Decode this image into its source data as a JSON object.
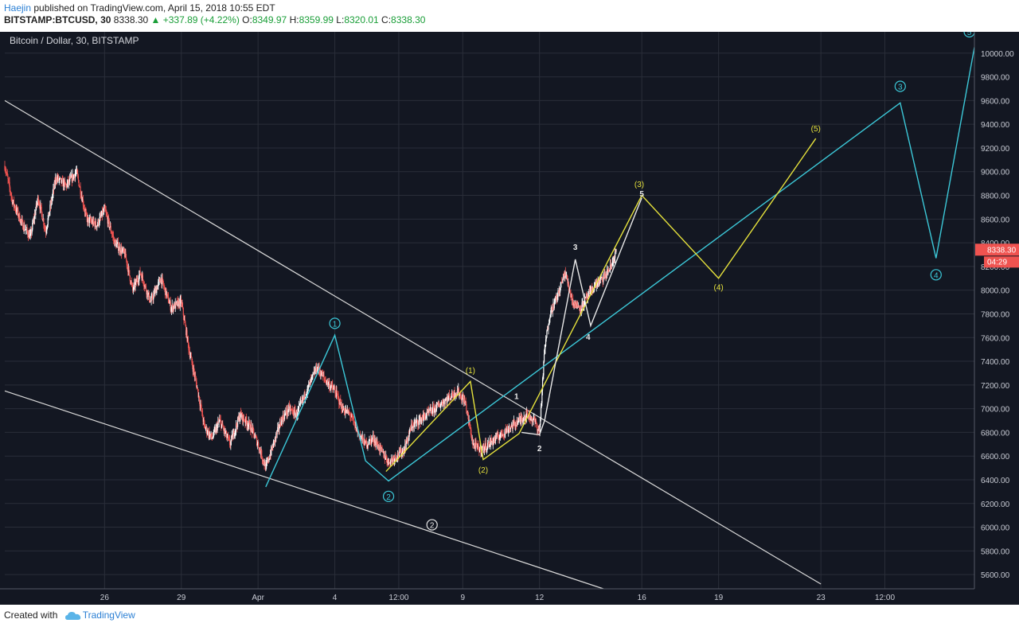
{
  "header": {
    "author": "Haejin",
    "published_text": " published on TradingView.com, April 15, 2018 10:55 EDT",
    "symbol": "BITSTAMP:BTCUSD, 30",
    "last": "8338.30",
    "change": "▲ +337.89 (+4.22%)",
    "o_label": "O:",
    "o_value": "8349.97",
    "h_label": "H:",
    "h_value": "8359.99",
    "l_label": "L:",
    "l_value": "8320.01",
    "c_label": "C:",
    "c_value": "8338.30"
  },
  "footer": {
    "created_with": "Created with",
    "brand": "TradingView"
  },
  "colors": {
    "background": "#131722",
    "grid": "#2a2e39",
    "axis_text": "#c8cbd4",
    "candle_up": "#ffffff",
    "candle_down": "#ef5350",
    "cyan_wave": "#3cc8d8",
    "yellow_wave": "#e6e23c",
    "white_wave": "#e8e8e8",
    "trendline": "#d8d8d8",
    "price_tag": "#ef5350"
  },
  "chart_data": {
    "type": "candlestick",
    "title": "Bitcoin / Dollar, 30, BITSTAMP",
    "ylim": [
      5480,
      10180
    ],
    "y_ticks": [
      "5600.00",
      "5800.00",
      "6000.00",
      "6200.00",
      "6400.00",
      "6600.00",
      "6800.00",
      "7000.00",
      "7200.00",
      "7400.00",
      "7600.00",
      "7800.00",
      "8000.00",
      "8200.00",
      "8400.00",
      "8600.00",
      "8800.00",
      "9000.00",
      "9200.00",
      "9400.00",
      "9600.00",
      "9800.00",
      "10000.00"
    ],
    "x_ticks": [
      {
        "label": "26",
        "day": 25.0
      },
      {
        "label": "29",
        "day": 28.0
      },
      {
        "label": "Apr",
        "day": 31.0
      },
      {
        "label": "4",
        "day": 34.0
      },
      {
        "label": "12:00",
        "day": 36.5
      },
      {
        "label": "9",
        "day": 39.0
      },
      {
        "label": "12",
        "day": 42.0
      },
      {
        "label": "16",
        "day": 46.0
      },
      {
        "label": "19",
        "day": 49.0
      },
      {
        "label": "23",
        "day": 53.0
      },
      {
        "label": "12:00",
        "day": 55.5
      }
    ],
    "x_range_days": [
      21.1,
      59.0
    ],
    "price_path": [
      [
        21.1,
        9050
      ],
      [
        21.4,
        8750
      ],
      [
        21.8,
        8550
      ],
      [
        22.1,
        8450
      ],
      [
        22.4,
        8780
      ],
      [
        22.7,
        8500
      ],
      [
        23.1,
        8950
      ],
      [
        23.5,
        8880
      ],
      [
        23.9,
        9000
      ],
      [
        24.3,
        8600
      ],
      [
        24.7,
        8550
      ],
      [
        25.0,
        8680
      ],
      [
        25.4,
        8400
      ],
      [
        25.8,
        8300
      ],
      [
        26.1,
        8000
      ],
      [
        26.4,
        8150
      ],
      [
        26.8,
        7900
      ],
      [
        27.2,
        8100
      ],
      [
        27.6,
        7850
      ],
      [
        28.0,
        7900
      ],
      [
        28.3,
        7500
      ],
      [
        28.6,
        7200
      ],
      [
        28.9,
        6850
      ],
      [
        29.2,
        6750
      ],
      [
        29.5,
        6900
      ],
      [
        29.9,
        6700
      ],
      [
        30.3,
        6950
      ],
      [
        30.7,
        6850
      ],
      [
        31.0,
        6700
      ],
      [
        31.3,
        6500
      ],
      [
        31.6,
        6700
      ],
      [
        31.9,
        6900
      ],
      [
        32.2,
        7000
      ],
      [
        32.5,
        6950
      ],
      [
        32.8,
        7100
      ],
      [
        33.0,
        7200
      ],
      [
        33.3,
        7350
      ],
      [
        33.6,
        7250
      ],
      [
        34.0,
        7150
      ],
      [
        34.3,
        7000
      ],
      [
        34.6,
        6950
      ],
      [
        34.9,
        6800
      ],
      [
        35.2,
        6700
      ],
      [
        35.5,
        6750
      ],
      [
        35.8,
        6650
      ],
      [
        36.1,
        6550
      ],
      [
        36.4,
        6600
      ],
      [
        36.7,
        6650
      ],
      [
        37.0,
        6850
      ],
      [
        37.3,
        6900
      ],
      [
        37.6,
        6950
      ],
      [
        37.9,
        7000
      ],
      [
        38.2,
        7050
      ],
      [
        38.5,
        7100
      ],
      [
        38.8,
        7150
      ],
      [
        39.1,
        7050
      ],
      [
        39.4,
        6700
      ],
      [
        39.7,
        6650
      ],
      [
        40.0,
        6700
      ],
      [
        40.3,
        6750
      ],
      [
        40.6,
        6800
      ],
      [
        40.9,
        6850
      ],
      [
        41.2,
        6900
      ],
      [
        41.5,
        6950
      ],
      [
        41.8,
        6900
      ],
      [
        42.0,
        6800
      ],
      [
        42.2,
        7500
      ],
      [
        42.4,
        7800
      ],
      [
        42.7,
        7950
      ],
      [
        43.0,
        8150
      ],
      [
        43.3,
        7900
      ],
      [
        43.6,
        7850
      ],
      [
        43.9,
        7950
      ],
      [
        44.2,
        8050
      ],
      [
        44.5,
        8100
      ],
      [
        44.8,
        8200
      ],
      [
        45.0,
        8338
      ]
    ],
    "labels": {
      "w1": "1",
      "w2": "2",
      "w3": "3",
      "w4": "4",
      "w5": "5",
      "y1": "(1)",
      "y2": "(2)",
      "y3": "(3)",
      "y4": "(4)",
      "y5": "(5)",
      "s1": "1",
      "s2": "2",
      "s3": "3",
      "s4": "4",
      "s5": "5",
      "big2": "2"
    },
    "cyan_path": [
      [
        31.3,
        6340
      ],
      [
        34.0,
        7620
      ],
      [
        35.2,
        6560
      ],
      [
        36.1,
        6390
      ],
      [
        56.1,
        9580
      ],
      [
        57.5,
        8270
      ],
      [
        59.0,
        10050
      ]
    ],
    "yellow_path": [
      [
        36.0,
        6470
      ],
      [
        39.3,
        7230
      ],
      [
        39.8,
        6570
      ],
      [
        41.2,
        6790
      ],
      [
        46.0,
        8800
      ],
      [
        49.0,
        8100
      ],
      [
        52.8,
        9280
      ]
    ],
    "white_path": [
      [
        41.3,
        6800
      ],
      [
        42.0,
        6780
      ],
      [
        42.2,
        6900
      ],
      [
        43.4,
        8260
      ],
      [
        44.0,
        7700
      ],
      [
        46.0,
        8780
      ]
    ],
    "trendlines": [
      {
        "from": [
          21.1,
          9600
        ],
        "to": [
          53.0,
          5520
        ]
      },
      {
        "from": [
          21.1,
          7150
        ],
        "to": [
          44.5,
          5480
        ]
      }
    ],
    "current_price": "8338.30",
    "countdown": "04:29"
  }
}
